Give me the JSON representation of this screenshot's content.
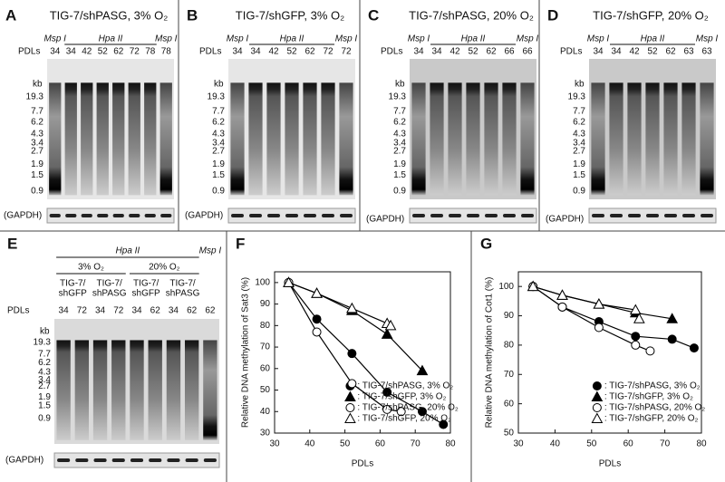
{
  "panels": [
    {
      "label": "A",
      "title": "TIG-7/shPASG, 3% O₂",
      "enzymes": [
        "Msp I",
        "Hpa II",
        "Msp I"
      ],
      "pdl_label": "PDLs",
      "pdls": [
        34,
        34,
        42,
        52,
        62,
        72,
        78,
        78
      ],
      "size_unit": "kb",
      "sizes": [
        "19.3",
        "7.7",
        "6.2",
        "4.3",
        "3.4",
        "2.7",
        "1.9",
        "1.5",
        "0.9"
      ],
      "loading": "(GAPDH)"
    },
    {
      "label": "B",
      "title": "TIG-7/shGFP, 3% O₂",
      "enzymes": [
        "Msp I",
        "Hpa II",
        "Msp I"
      ],
      "pdl_label": "PDLs",
      "pdls": [
        34,
        34,
        42,
        52,
        62,
        72,
        72
      ],
      "size_unit": "kb",
      "sizes": [
        "19.3",
        "7.7",
        "6.2",
        "4.3",
        "3.4",
        "2.7",
        "1.9",
        "1.5",
        "0.9"
      ],
      "loading": "(GAPDH)"
    },
    {
      "label": "C",
      "title": "TIG-7/shPASG, 20% O₂",
      "enzymes": [
        "Msp I",
        "Hpa II",
        "Msp I"
      ],
      "pdl_label": "PDLs",
      "pdls": [
        34,
        34,
        42,
        52,
        62,
        66,
        66
      ],
      "size_unit": "kb",
      "sizes": [
        "19.3",
        "7.7",
        "6.2",
        "4.3",
        "3.4",
        "2.7",
        "1.9",
        "1.5",
        "0.9"
      ],
      "loading": "(GAPDH)"
    },
    {
      "label": "D",
      "title": "TIG-7/shGFP, 20% O₂",
      "enzymes": [
        "Msp I",
        "Hpa II",
        "Msp I"
      ],
      "pdl_label": "PDLs",
      "pdls": [
        34,
        34,
        42,
        52,
        62,
        63,
        63
      ],
      "size_unit": "kb",
      "sizes": [
        "19.3",
        "7.7",
        "6.2",
        "4.3",
        "3.4",
        "2.7",
        "1.9",
        "1.5",
        "0.9"
      ],
      "loading": "(GAPDH)"
    }
  ],
  "panel_e": {
    "label": "E",
    "enzymes": [
      "Hpa II",
      "Msp I"
    ],
    "conditions": [
      "3% O₂",
      "20% O₂"
    ],
    "groups": [
      [
        "TIG-7/",
        "shGFP"
      ],
      [
        "TIG-7/",
        "shPASG"
      ],
      [
        "TIG-7/",
        "shGFP"
      ],
      [
        "TIG-7/",
        "shPASG"
      ]
    ],
    "pdl_label": "PDLs",
    "pdls": [
      34,
      72,
      34,
      72,
      34,
      62,
      34,
      62,
      62
    ],
    "size_unit": "kb",
    "sizes": [
      "19.3",
      "7.7",
      "6.2",
      "4.3",
      "3.4",
      "2.7",
      "1.9",
      "1.5",
      "0.9"
    ],
    "loading": "(GAPDH)"
  },
  "chart_data": [
    {
      "type": "line",
      "panel_label": "F",
      "xlabel": "PDLs",
      "ylabel": "Relative DNA methylation of Sat3 (%)",
      "xlim": [
        30,
        80
      ],
      "xticks": [
        30,
        40,
        50,
        60,
        70,
        80
      ],
      "ylim": [
        30,
        105
      ],
      "yticks": [
        30,
        40,
        50,
        60,
        70,
        80,
        90,
        100
      ],
      "series": [
        {
          "name": ": TIG-7/shPASG, 3% O₂",
          "marker": "circle",
          "filled": true,
          "color": "#000000",
          "x": [
            34,
            42,
            52,
            62,
            72,
            78
          ],
          "values": [
            100,
            83,
            67,
            49,
            40,
            34
          ]
        },
        {
          "name": ": TIG-7/shGFP, 3% O₂",
          "marker": "triangle",
          "filled": true,
          "color": "#000000",
          "x": [
            34,
            42,
            52,
            62,
            72
          ],
          "values": [
            100,
            95,
            87,
            76,
            59
          ]
        },
        {
          "name": ": TIG-7/shPASG, 20% O₂",
          "marker": "circle",
          "filled": false,
          "color": "#000000",
          "x": [
            34,
            42,
            52,
            62,
            66
          ],
          "values": [
            100,
            77,
            53,
            41,
            40
          ]
        },
        {
          "name": ": TIG-7/shGFP, 20% O₂",
          "marker": "triangle",
          "filled": false,
          "color": "#000000",
          "x": [
            34,
            42,
            52,
            62,
            63
          ],
          "values": [
            100,
            95,
            88,
            81,
            80
          ]
        }
      ]
    },
    {
      "type": "line",
      "panel_label": "G",
      "xlabel": "PDLs",
      "ylabel": "Relative DNA methylation of Cot1 (%)",
      "xlim": [
        30,
        80
      ],
      "xticks": [
        30,
        40,
        50,
        60,
        70,
        80
      ],
      "ylim": [
        50,
        105
      ],
      "yticks": [
        50,
        60,
        70,
        80,
        90,
        100
      ],
      "series": [
        {
          "name": ": TIG-7/shPASG, 3% O₂",
          "marker": "circle",
          "filled": true,
          "color": "#000000",
          "x": [
            34,
            42,
            52,
            62,
            72,
            78
          ],
          "values": [
            100,
            93,
            88,
            83,
            82,
            79
          ]
        },
        {
          "name": ": TIG-7/shGFP, 3% O₂",
          "marker": "triangle",
          "filled": true,
          "color": "#000000",
          "x": [
            34,
            42,
            52,
            62,
            72
          ],
          "values": [
            100,
            97,
            94,
            91,
            89
          ]
        },
        {
          "name": ": TIG-7/shPASG, 20% O₂",
          "marker": "circle",
          "filled": false,
          "color": "#000000",
          "x": [
            34,
            42,
            52,
            62,
            66
          ],
          "values": [
            100,
            93,
            86,
            80,
            78
          ]
        },
        {
          "name": ": TIG-7/shGFP, 20% O₂",
          "marker": "triangle",
          "filled": false,
          "color": "#000000",
          "x": [
            34,
            42,
            52,
            62,
            63
          ],
          "values": [
            100,
            97,
            94,
            92,
            89
          ]
        }
      ]
    }
  ]
}
